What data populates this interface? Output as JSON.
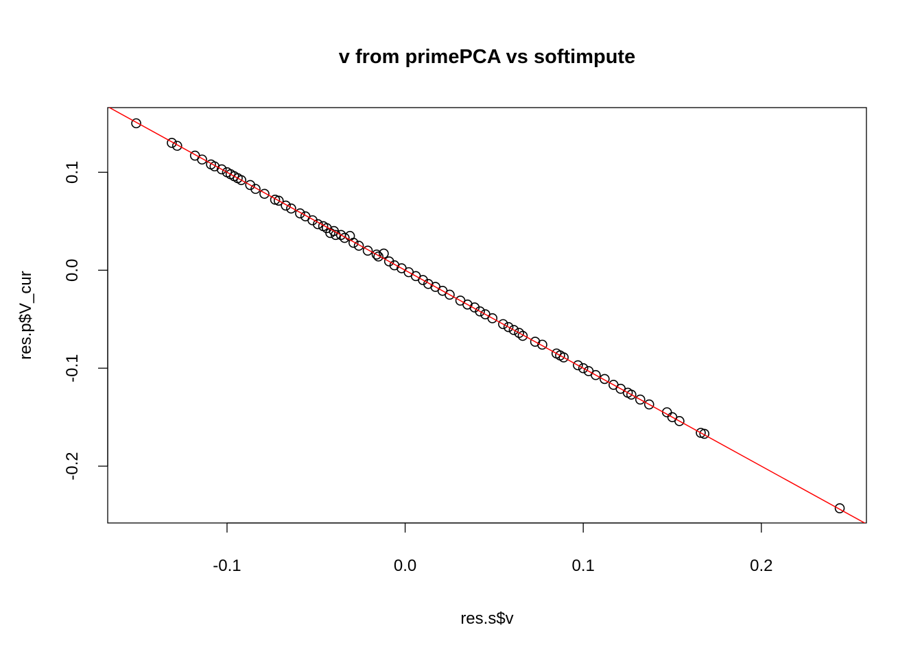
{
  "chart_data": {
    "type": "scatter",
    "title": "v from primePCA vs softimpute",
    "xlabel": "res.s$v",
    "ylabel": "res.p$V_cur",
    "xlim": [
      -0.167,
      0.259
    ],
    "ylim": [
      -0.258,
      0.166
    ],
    "xticks": [
      {
        "v": -0.1,
        "label": "-0.1"
      },
      {
        "v": 0.0,
        "label": "0.0"
      },
      {
        "v": 0.1,
        "label": "0.1"
      },
      {
        "v": 0.2,
        "label": "0.2"
      }
    ],
    "yticks": [
      {
        "v": 0.1,
        "label": "0.1"
      },
      {
        "v": 0.0,
        "label": "0.0"
      },
      {
        "v": -0.1,
        "label": "-0.1"
      },
      {
        "v": -0.2,
        "label": "-0.2"
      }
    ],
    "grid": false,
    "point_color": "#000000",
    "reference_line": {
      "intercept": 0,
      "slope": -1,
      "color": "#ff0000"
    },
    "x": [
      -0.151,
      -0.131,
      -0.128,
      -0.118,
      -0.114,
      -0.109,
      -0.107,
      -0.103,
      -0.1,
      -0.098,
      -0.096,
      -0.094,
      -0.092,
      -0.087,
      -0.084,
      -0.079,
      -0.073,
      -0.071,
      -0.067,
      -0.064,
      -0.059,
      -0.056,
      -0.052,
      -0.049,
      -0.046,
      -0.044,
      -0.042,
      -0.04,
      -0.039,
      -0.036,
      -0.034,
      -0.031,
      -0.029,
      -0.026,
      -0.021,
      -0.016,
      -0.015,
      -0.012,
      -0.009,
      -0.006,
      -0.002,
      0.002,
      0.006,
      0.01,
      0.013,
      0.017,
      0.021,
      0.025,
      0.031,
      0.035,
      0.039,
      0.042,
      0.045,
      0.049,
      0.055,
      0.058,
      0.061,
      0.064,
      0.066,
      0.073,
      0.077,
      0.085,
      0.087,
      0.089,
      0.097,
      0.1,
      0.103,
      0.107,
      0.112,
      0.117,
      0.121,
      0.125,
      0.127,
      0.132,
      0.137,
      0.147,
      0.15,
      0.154,
      0.166,
      0.168,
      0.244
    ],
    "y": [
      0.15,
      0.13,
      0.127,
      0.117,
      0.113,
      0.108,
      0.106,
      0.103,
      0.1,
      0.098,
      0.096,
      0.094,
      0.092,
      0.087,
      0.083,
      0.078,
      0.072,
      0.071,
      0.066,
      0.063,
      0.058,
      0.055,
      0.051,
      0.047,
      0.045,
      0.043,
      0.038,
      0.04,
      0.036,
      0.036,
      0.033,
      0.035,
      0.028,
      0.025,
      0.02,
      0.016,
      0.014,
      0.017,
      0.009,
      0.005,
      0.002,
      -0.002,
      -0.006,
      -0.01,
      -0.014,
      -0.017,
      -0.021,
      -0.025,
      -0.031,
      -0.035,
      -0.038,
      -0.042,
      -0.045,
      -0.049,
      -0.055,
      -0.058,
      -0.061,
      -0.064,
      -0.067,
      -0.073,
      -0.076,
      -0.085,
      -0.087,
      -0.089,
      -0.097,
      -0.1,
      -0.103,
      -0.107,
      -0.111,
      -0.117,
      -0.121,
      -0.125,
      -0.127,
      -0.132,
      -0.137,
      -0.145,
      -0.15,
      -0.154,
      -0.166,
      -0.167,
      -0.243
    ]
  }
}
